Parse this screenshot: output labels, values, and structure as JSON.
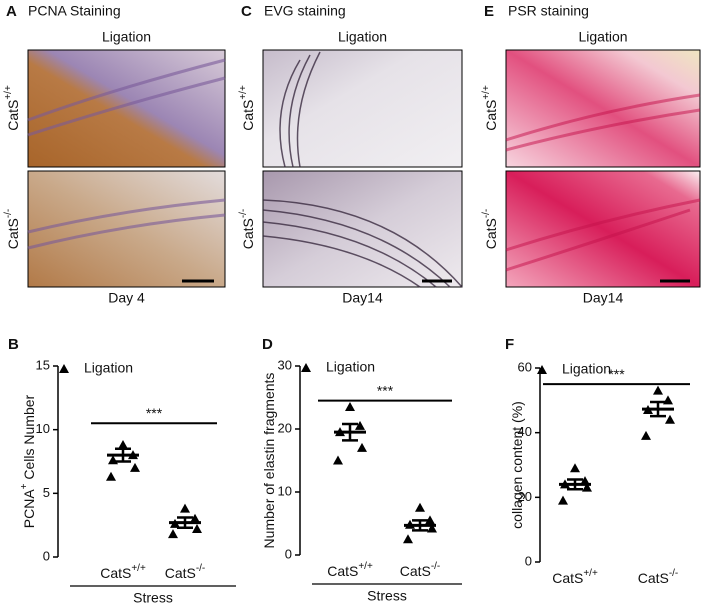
{
  "panels": [
    {
      "letter": "A",
      "title": "PCNA Staining",
      "condition": "Ligation",
      "rows": [
        {
          "text": "CatS",
          "sup": "+/+"
        },
        {
          "text": "CatS",
          "sup": "-/-"
        }
      ],
      "time": "Day 4"
    },
    {
      "letter": "C",
      "title": "EVG staining",
      "condition": "Ligation",
      "rows": [
        {
          "text": "CatS",
          "sup": "+/+"
        },
        {
          "text": "CatS",
          "sup": "-/-"
        }
      ],
      "time": "Day14"
    },
    {
      "letter": "E",
      "title": "PSR staining",
      "condition": "Ligation",
      "rows": [
        {
          "text": "CatS",
          "sup": "+/+"
        },
        {
          "text": "CatS",
          "sup": "-/-"
        }
      ],
      "time": "Day14"
    }
  ],
  "chart_data": [
    {
      "type": "dot",
      "letter": "B",
      "ylabel": {
        "text": "PCNA",
        "sup": "+",
        "rest": " Cells Number"
      },
      "xlabel": "Stress",
      "legend": "Ligation",
      "categories": [
        {
          "text": "CatS",
          "sup": "+/+"
        },
        {
          "text": "CatS",
          "sup": "-/-"
        }
      ],
      "groups": [
        {
          "points": [
            8.8,
            8.0,
            7.6,
            7.0,
            6.3
          ],
          "mean": 8.0,
          "sem": 0.5
        },
        {
          "points": [
            3.8,
            3.0,
            2.6,
            2.2,
            1.8
          ],
          "mean": 2.7,
          "sem": 0.4
        }
      ],
      "significance": {
        "label": "***",
        "y": 10.5
      },
      "ylim": [
        0,
        15
      ],
      "yticks": [
        0,
        5,
        10,
        15
      ],
      "color": "#000000"
    },
    {
      "type": "dot",
      "letter": "D",
      "ylabel": {
        "text": "Number of elastin fragments"
      },
      "xlabel": "Stress",
      "legend": "Ligation",
      "categories": [
        {
          "text": "CatS",
          "sup": "+/+"
        },
        {
          "text": "CatS",
          "sup": "-/-"
        }
      ],
      "groups": [
        {
          "points": [
            23.5,
            20.5,
            19.5,
            17,
            15
          ],
          "mean": 19.5,
          "sem": 1.3
        },
        {
          "points": [
            7.5,
            5.5,
            4.8,
            4.2,
            2.5
          ],
          "mean": 4.7,
          "sem": 0.8
        }
      ],
      "significance": {
        "label": "***",
        "y": 24.5
      },
      "ylim": [
        0,
        30
      ],
      "yticks": [
        0,
        10,
        20,
        30
      ],
      "color": "#000000"
    },
    {
      "type": "dot",
      "letter": "F",
      "ylabel": {
        "text": "collagen content (%)"
      },
      "legend": "Ligation",
      "categories": [
        {
          "text": "CatS",
          "sup": "+/+"
        },
        {
          "text": "CatS",
          "sup": "-/-"
        }
      ],
      "groups": [
        {
          "points": [
            29,
            25,
            24,
            23,
            19
          ],
          "mean": 24,
          "sem": 1.5
        },
        {
          "points": [
            53,
            50,
            47,
            44,
            39
          ],
          "mean": 47.3,
          "sem": 2.2
        }
      ],
      "significance": {
        "label": "***",
        "y": 55
      },
      "ylim": [
        0,
        60
      ],
      "yticks": [
        0,
        20,
        40,
        60
      ],
      "color": "#000000"
    }
  ]
}
